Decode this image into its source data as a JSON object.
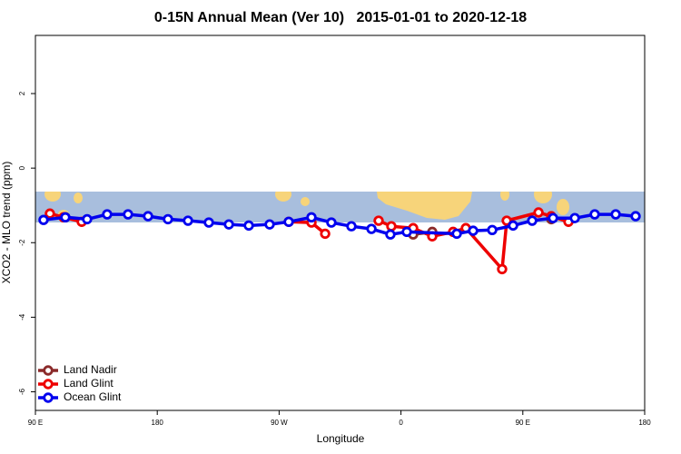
{
  "chart_data": {
    "type": "line",
    "title": "0-15N Annual Mean (Ver 10)   2015-01-01 to 2020-12-18",
    "x_label": "Longitude",
    "y_label": "XCO2 - MLO trend (ppm)",
    "xlim": [
      90,
      540
    ],
    "xticks": [
      {
        "value": 90,
        "label": "90 E"
      },
      {
        "value": 180,
        "label": "180"
      },
      {
        "value": 270,
        "label": "90 W"
      },
      {
        "value": 360,
        "label": "0"
      },
      {
        "value": 450,
        "label": "90 E"
      },
      {
        "value": 540,
        "label": "180"
      }
    ],
    "ylim": [
      -6.5,
      3.56
    ],
    "yticks": [
      -6,
      -4,
      -2,
      0,
      2
    ],
    "legend": "bottom-left",
    "series": [
      {
        "name": "Land Nadir",
        "color": "#8b2a2a",
        "x": [
          112.1,
          null,
          369.0,
          383.1,
          null,
          471.0
        ],
        "values": [
          -1.32,
          null,
          -1.78,
          -1.71,
          null,
          -1.37
        ]
      },
      {
        "name": "Land Glint",
        "color": "#ee0000",
        "x": [
          100.7,
          110.8,
          124.2,
          null,
          277.1,
          293.9,
          304.0,
          null,
          343.5,
          352.9,
          369.0,
          383.1,
          398.5,
          407.9,
          434.7,
          438.1,
          461.6,
          471.0,
          483.7
        ],
        "values": [
          -1.22,
          -1.32,
          -1.44,
          null,
          -1.44,
          -1.46,
          -1.76,
          null,
          -1.41,
          -1.56,
          -1.61,
          -1.83,
          -1.71,
          -1.61,
          -2.71,
          -1.41,
          -1.19,
          -1.29,
          -1.44
        ]
      },
      {
        "name": "Ocean Glint",
        "color": "#0000ee",
        "x": [
          96.0,
          112.1,
          128.2,
          143.0,
          158.4,
          173.2,
          187.9,
          202.7,
          218.1,
          232.9,
          247.6,
          263.0,
          277.1,
          293.9,
          308.6,
          323.4,
          338.2,
          352.2,
          364.3,
          401.2,
          413.3,
          427.4,
          442.8,
          456.9,
          472.3,
          488.4,
          503.1,
          518.6,
          533.3
        ],
        "values": [
          -1.39,
          -1.32,
          -1.37,
          -1.24,
          -1.24,
          -1.29,
          -1.37,
          -1.41,
          -1.46,
          -1.51,
          -1.54,
          -1.51,
          -1.44,
          -1.32,
          -1.46,
          -1.56,
          -1.63,
          -1.78,
          -1.71,
          -1.76,
          -1.68,
          -1.66,
          -1.54,
          -1.41,
          -1.34,
          -1.34,
          -1.24,
          -1.24,
          -1.29
        ]
      }
    ]
  }
}
